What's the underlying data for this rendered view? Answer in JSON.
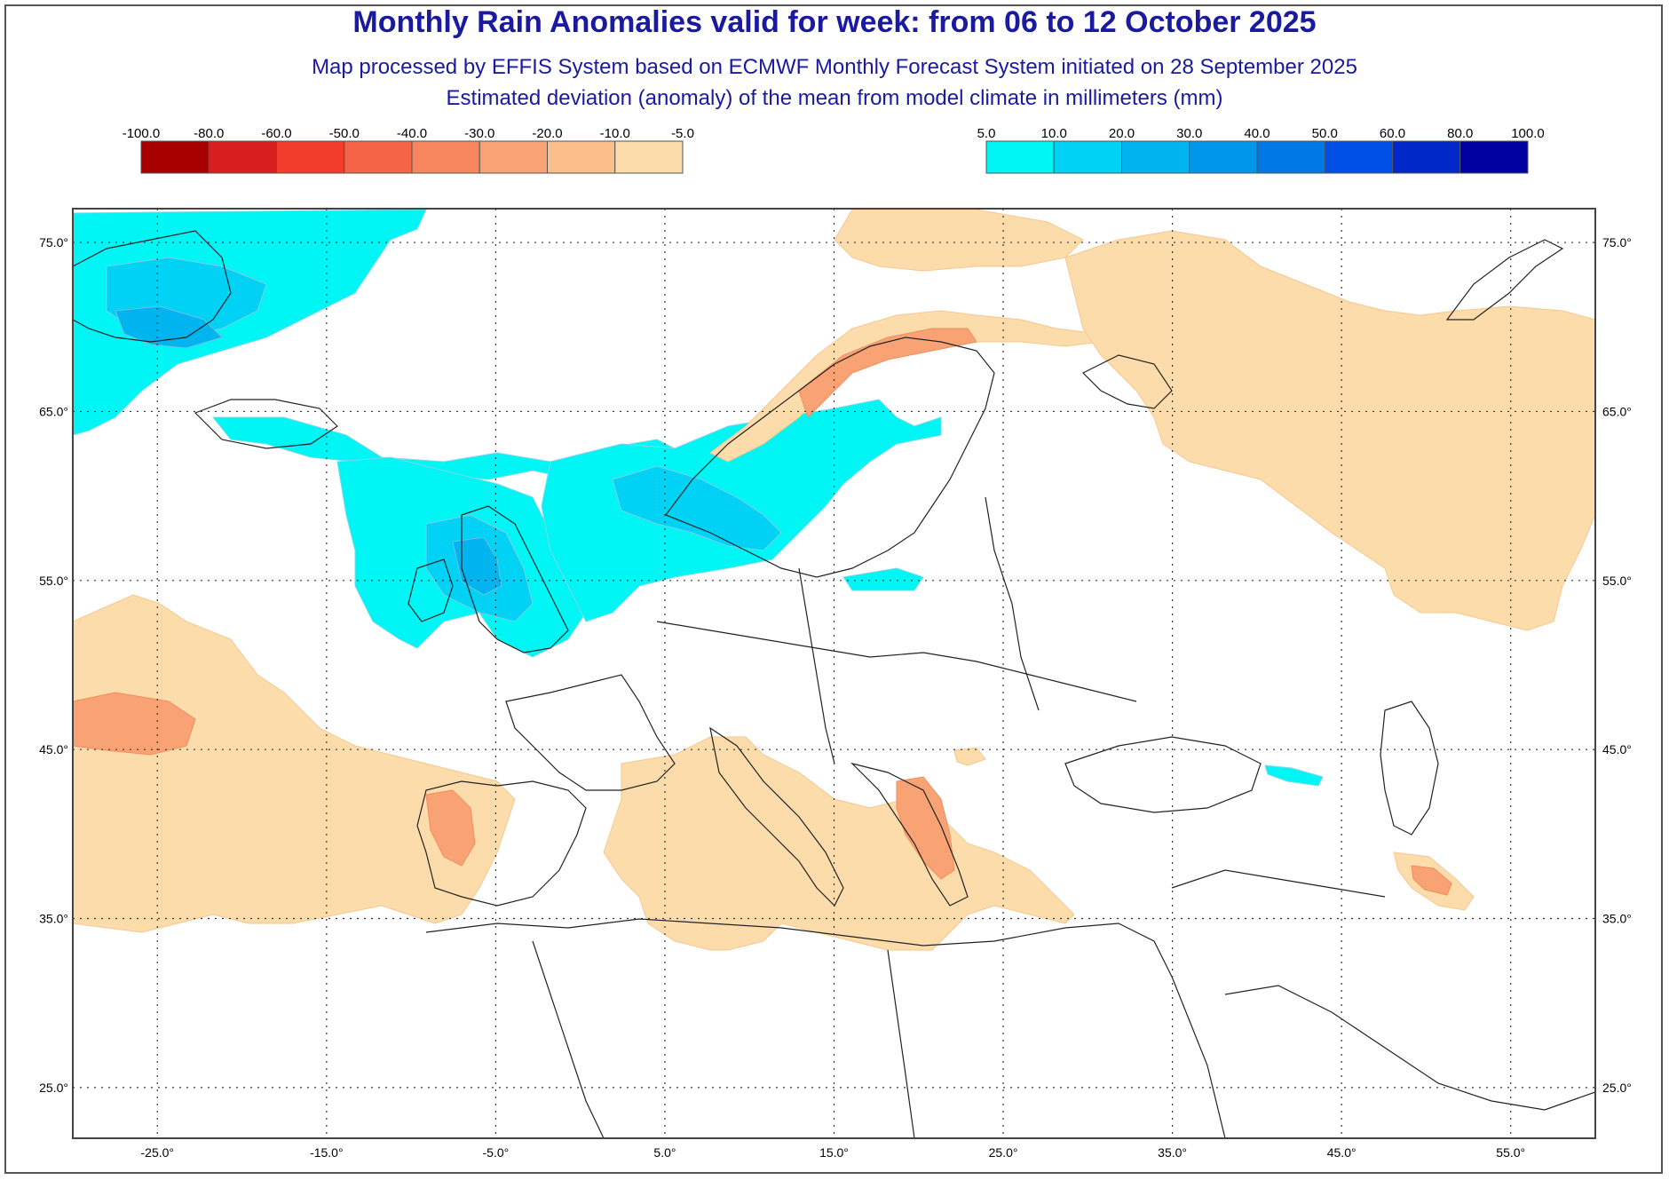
{
  "title": "Monthly Rain Anomalies valid for week: from 06 to 12 October 2025",
  "subtitle_1": "Map processed by EFFIS System based on ECMWF Monthly Forecast System initiated on 28 September 2025",
  "subtitle_2": "Estimated deviation (anomaly) of the mean from model climate in millimeters (mm)",
  "legend_negative": {
    "labels": [
      "-100.0",
      "-80.0",
      "-60.0",
      "-50.0",
      "-40.0",
      "-30.0",
      "-20.0",
      "-10.0",
      "-5.0"
    ],
    "colors": [
      "#a80000",
      "#d81e1e",
      "#f23c2c",
      "#f66448",
      "#f8865e",
      "#f9a374",
      "#fbbf8c",
      "#fcdcaa"
    ]
  },
  "legend_positive": {
    "labels": [
      "5.0",
      "10.0",
      "20.0",
      "30.0",
      "40.0",
      "50.0",
      "60.0",
      "80.0",
      "100.0"
    ],
    "colors": [
      "#00f5f5",
      "#00d2f5",
      "#00b4f0",
      "#0096ec",
      "#0078e6",
      "#0050e6",
      "#0028c8",
      "#0000a0"
    ]
  },
  "map": {
    "lon_range": [
      -30,
      60
    ],
    "lat_range": [
      22,
      77
    ],
    "lon_ticks": [
      "-25.0°",
      "-15.0°",
      "-5.0°",
      "5.0°",
      "15.0°",
      "25.0°",
      "35.0°",
      "45.0°",
      "55.0°"
    ],
    "lon_tick_values": [
      -25,
      -15,
      -5,
      5,
      15,
      25,
      35,
      45,
      55
    ],
    "lat_ticks": [
      "75.0°",
      "65.0°",
      "55.0°",
      "45.0°",
      "35.0°",
      "25.0°"
    ],
    "lat_tick_values": [
      75,
      65,
      55,
      45,
      35,
      25
    ],
    "gridlines": true
  }
}
